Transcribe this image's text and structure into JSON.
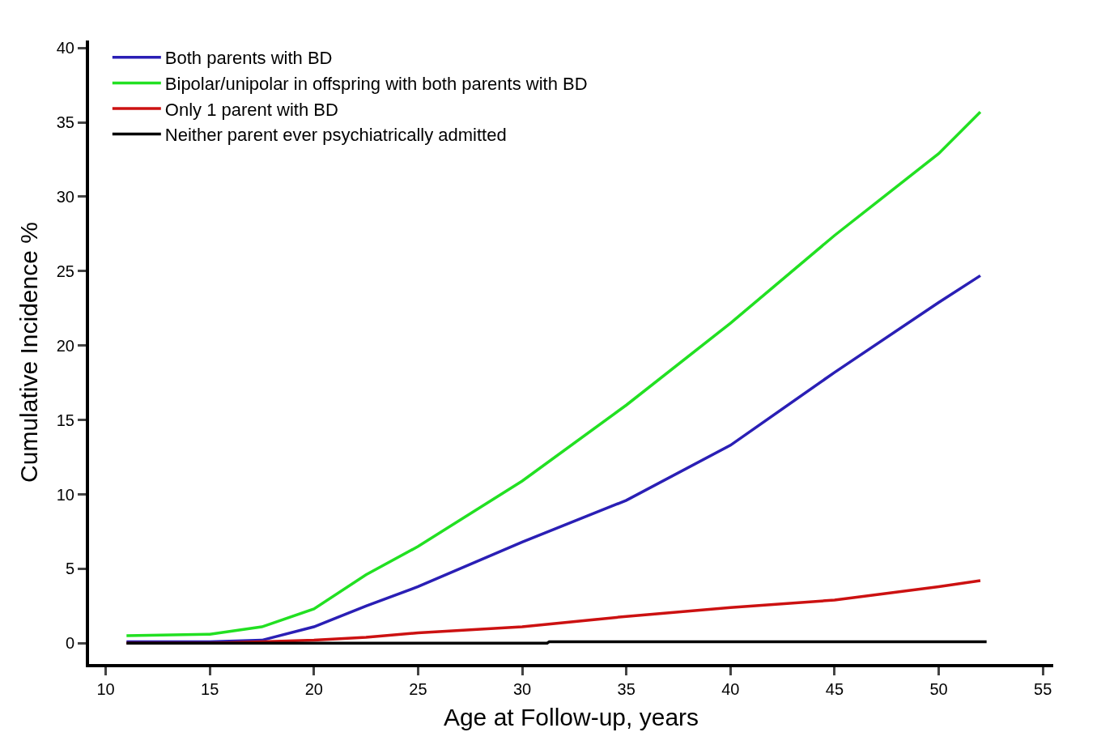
{
  "chart_data": {
    "type": "line",
    "xlabel": "Age at Follow-up, years",
    "ylabel": "Cumulative Incidence %",
    "xlim": [
      9.2,
      55.5
    ],
    "ylim": [
      -1.4,
      40.5
    ],
    "xticks": [
      10,
      15,
      20,
      25,
      30,
      35,
      40,
      45,
      50,
      55
    ],
    "yticks": [
      0,
      5,
      10,
      15,
      20,
      25,
      30,
      35,
      40
    ],
    "legend": "top left",
    "marker": "none",
    "line_style": "solid",
    "x": [
      11,
      15,
      17.5,
      20,
      22.5,
      25,
      30,
      35,
      40,
      45,
      50,
      52
    ],
    "series": [
      {
        "name": "Both parents with BD",
        "color": "#2a1fb5",
        "values": [
          0.1,
          0.1,
          0.2,
          1.1,
          2.5,
          3.8,
          6.8,
          9.6,
          13.3,
          18.2,
          22.9,
          24.7
        ]
      },
      {
        "name": "Bipolar/unipolar in offspring with both parents with BD",
        "color": "#22e022",
        "values": [
          0.5,
          0.6,
          1.1,
          2.3,
          4.6,
          6.5,
          10.9,
          16,
          21.5,
          27.4,
          32.9,
          35.7
        ]
      },
      {
        "name": "Only 1 parent with BD",
        "color": "#cc1111",
        "values": [
          0,
          0,
          0.1,
          0.2,
          0.4,
          0.7,
          1.1,
          1.8,
          2.4,
          2.9,
          3.8,
          4.2
        ]
      },
      {
        "name": "Neither parent ever psychiatrically admitted",
        "color": "#000000",
        "x": [
          11,
          31.2,
          31.3,
          52.3
        ],
        "values": [
          0,
          0,
          0.1,
          0.1
        ]
      }
    ]
  }
}
